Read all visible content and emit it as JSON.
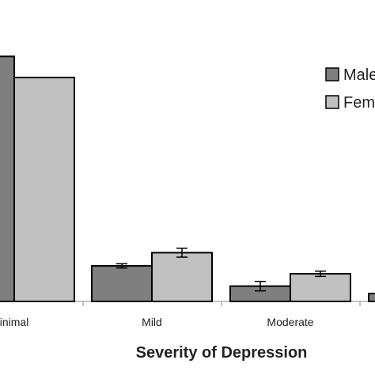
{
  "chart_data": {
    "type": "bar",
    "title": "",
    "xlabel": "Severity of Depression",
    "ylabel": "",
    "categories": [
      "inimal",
      "Mild",
      "Moderate",
      ""
    ],
    "series": [
      {
        "name": "Male",
        "color": "#7f7f7f",
        "values": [
          93,
          13.5,
          5.8,
          3
        ],
        "errors": [
          0,
          0.8,
          1.8,
          0
        ]
      },
      {
        "name": "Fem",
        "color": "#c0c0c0",
        "values": [
          85,
          18.5,
          10.5,
          null
        ],
        "errors": [
          0,
          1.7,
          1.0,
          0
        ]
      }
    ],
    "ylim": [
      0,
      100
    ],
    "grid": false,
    "legend_position": "top-right",
    "bar_outline": "#000000"
  }
}
